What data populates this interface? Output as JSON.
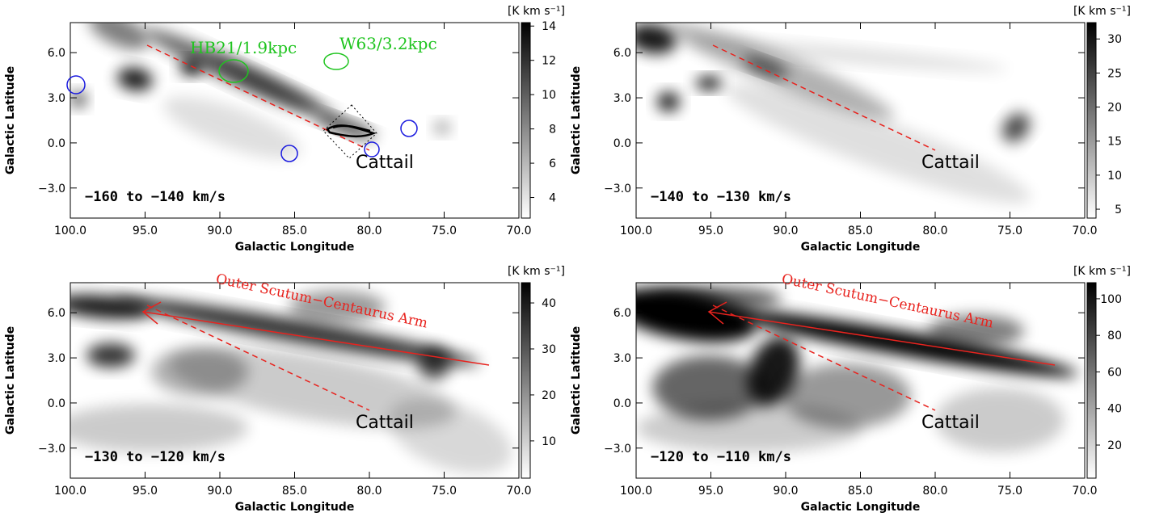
{
  "chart_data": [
    {
      "type": "image",
      "xlabel": "Galactic Longitude",
      "ylabel": "Galactic Latitude",
      "xlim": [
        100,
        70
      ],
      "ylim": [
        -5,
        8
      ],
      "xticks": [
        {
          "value": 100,
          "label": "100.0"
        },
        {
          "value": 95,
          "label": "95.0"
        },
        {
          "value": 90,
          "label": "90.0"
        },
        {
          "value": 85,
          "label": "85.0"
        },
        {
          "value": 80,
          "label": "80.0"
        },
        {
          "value": 75,
          "label": "75.0"
        },
        {
          "value": 70,
          "label": "70.0"
        }
      ],
      "yticks": [
        {
          "value": -3,
          "label": "−3.0"
        },
        {
          "value": 0,
          "label": "0.0"
        },
        {
          "value": 3,
          "label": "3.0"
        },
        {
          "value": 6,
          "label": "6.0"
        }
      ],
      "colorbar": {
        "label": "[K km s⁻¹]",
        "clim": [
          2.8,
          14.2
        ],
        "ticks": [
          4,
          6,
          8,
          10,
          12,
          14
        ]
      },
      "velocity": "−160 to −140 km/s",
      "annotations": [
        "Cattail",
        "HB21/1.9kpc",
        "W63/3.2kpc"
      ]
    },
    {
      "type": "image",
      "xlabel": "Galactic Longitude",
      "ylabel": "Galactic Latitude",
      "xlim": [
        100,
        70
      ],
      "ylim": [
        -5,
        8
      ],
      "xticks": [
        {
          "value": 100,
          "label": "100.0"
        },
        {
          "value": 95,
          "label": "95.0"
        },
        {
          "value": 90,
          "label": "90.0"
        },
        {
          "value": 85,
          "label": "85.0"
        },
        {
          "value": 80,
          "label": "80.0"
        },
        {
          "value": 75,
          "label": "75.0"
        },
        {
          "value": 70,
          "label": "70.0"
        }
      ],
      "yticks": [
        {
          "value": -3,
          "label": "−3.0"
        },
        {
          "value": 0,
          "label": "0.0"
        },
        {
          "value": 3,
          "label": "3.0"
        },
        {
          "value": 6,
          "label": "6.0"
        }
      ],
      "colorbar": {
        "label": "[K km s⁻¹]",
        "clim": [
          3.7,
          32.4
        ],
        "ticks": [
          5,
          10,
          15,
          20,
          25,
          30
        ]
      },
      "velocity": "−140 to −130 km/s",
      "annotations": [
        "Cattail"
      ]
    },
    {
      "type": "image",
      "xlabel": "Galactic Longitude",
      "ylabel": "Galactic Latitude",
      "xlim": [
        100,
        70
      ],
      "ylim": [
        -5,
        8
      ],
      "xticks": [
        {
          "value": 100,
          "label": "100.0"
        },
        {
          "value": 95,
          "label": "95.0"
        },
        {
          "value": 90,
          "label": "90.0"
        },
        {
          "value": 85,
          "label": "85.0"
        },
        {
          "value": 80,
          "label": "80.0"
        },
        {
          "value": 75,
          "label": "75.0"
        },
        {
          "value": 70,
          "label": "70.0"
        }
      ],
      "yticks": [
        {
          "value": -3,
          "label": "−3.0"
        },
        {
          "value": 0,
          "label": "0.0"
        },
        {
          "value": 3,
          "label": "3.0"
        },
        {
          "value": 6,
          "label": "6.0"
        }
      ],
      "colorbar": {
        "label": "[K km s⁻¹]",
        "clim": [
          1.9,
          44.4
        ],
        "ticks": [
          10,
          20,
          30,
          40
        ]
      },
      "velocity": "−130 to −120 km/s",
      "annotations": [
        "Cattail",
        "Outer Scutum−Centaurus Arm"
      ]
    },
    {
      "type": "image",
      "xlabel": "Galactic Longitude",
      "ylabel": "Galactic Latitude",
      "xlim": [
        100,
        70
      ],
      "ylim": [
        -5,
        8
      ],
      "xticks": [
        {
          "value": 100,
          "label": "100.0"
        },
        {
          "value": 95,
          "label": "95.0"
        },
        {
          "value": 90,
          "label": "90.0"
        },
        {
          "value": 85,
          "label": "85.0"
        },
        {
          "value": 80,
          "label": "80.0"
        },
        {
          "value": 75,
          "label": "75.0"
        },
        {
          "value": 70,
          "label": "70.0"
        }
      ],
      "yticks": [
        {
          "value": -3,
          "label": "−3.0"
        },
        {
          "value": 0,
          "label": "0.0"
        },
        {
          "value": 3,
          "label": "3.0"
        },
        {
          "value": 6,
          "label": "6.0"
        }
      ],
      "colorbar": {
        "label": "[K km s⁻¹]",
        "clim": [
          1.9,
          108.8
        ],
        "ticks": [
          20,
          40,
          60,
          80,
          100
        ]
      },
      "velocity": "−120 to −110 km/s",
      "annotations": [
        "Cattail",
        "Outer Scutum−Centaurus Arm"
      ]
    }
  ]
}
